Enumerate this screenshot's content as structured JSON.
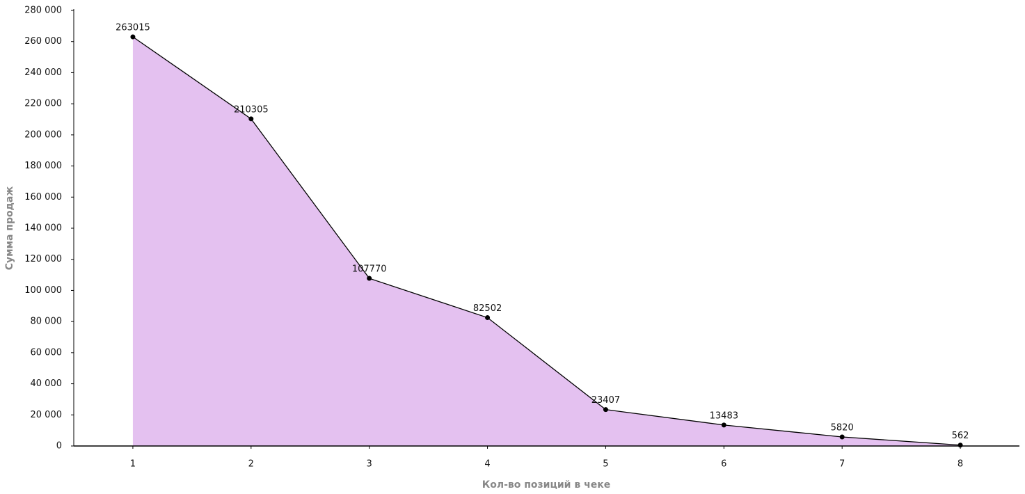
{
  "chart_data": {
    "type": "area",
    "x_label": "Кол-во позиций в чеке",
    "y_label": "Сумма продаж",
    "x": [
      1,
      2,
      3,
      4,
      5,
      6,
      7,
      8
    ],
    "series": [
      {
        "name": "Сумма продаж",
        "color": "#e4c1f0",
        "line_color": "#000000",
        "values": [
          263015,
          210305,
          107770,
          82502,
          23407,
          13483,
          5820,
          562
        ]
      }
    ],
    "xlim": [
      0.5,
      8.5
    ],
    "xticks": [
      1,
      2,
      3,
      4,
      5,
      6,
      7,
      8
    ],
    "ylim": [
      0,
      280000
    ],
    "yticks": [
      0,
      {
        "value": 20000,
        "label": "20 000"
      },
      {
        "value": 40000,
        "label": "40 000"
      },
      {
        "value": 60000,
        "label": "60 000"
      },
      {
        "value": 80000,
        "label": "80 000"
      },
      {
        "value": 100000,
        "label": "100 000"
      },
      {
        "value": 120000,
        "label": "120 000"
      },
      {
        "value": 140000,
        "label": "140 000"
      },
      {
        "value": 160000,
        "label": "160 000"
      },
      {
        "value": 180000,
        "label": "180 000"
      },
      {
        "value": 200000,
        "label": "200 000"
      },
      {
        "value": 220000,
        "label": "220 000"
      },
      {
        "value": 240000,
        "label": "240 000"
      },
      {
        "value": 260000,
        "label": "260 000"
      },
      {
        "value": 280000,
        "label": "280 000"
      }
    ],
    "grid": false
  }
}
